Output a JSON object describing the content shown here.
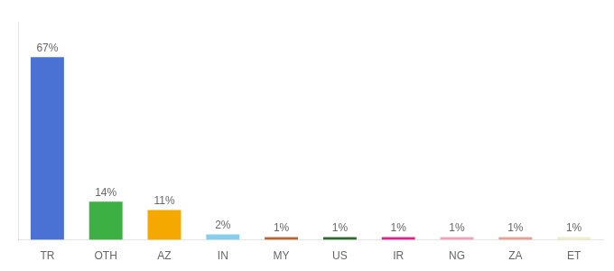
{
  "chart_data": {
    "type": "bar",
    "categories": [
      "TR",
      "OTH",
      "AZ",
      "IN",
      "MY",
      "US",
      "IR",
      "NG",
      "ZA",
      "ET"
    ],
    "values": [
      67,
      14,
      11,
      2,
      1,
      1,
      1,
      1,
      1,
      1
    ],
    "value_labels": [
      "67%",
      "14%",
      "11%",
      "2%",
      "1%",
      "1%",
      "1%",
      "1%",
      "1%",
      "1%"
    ],
    "colors": [
      "#4a72d4",
      "#3cb043",
      "#f5a800",
      "#87ceeb",
      "#c0622e",
      "#2d6a2d",
      "#e91e8c",
      "#f4a0b8",
      "#e8a090",
      "#f0eecc"
    ],
    "ylim": [
      0,
      80
    ],
    "data_labels": true,
    "tick_labels": "x",
    "grid": false
  }
}
